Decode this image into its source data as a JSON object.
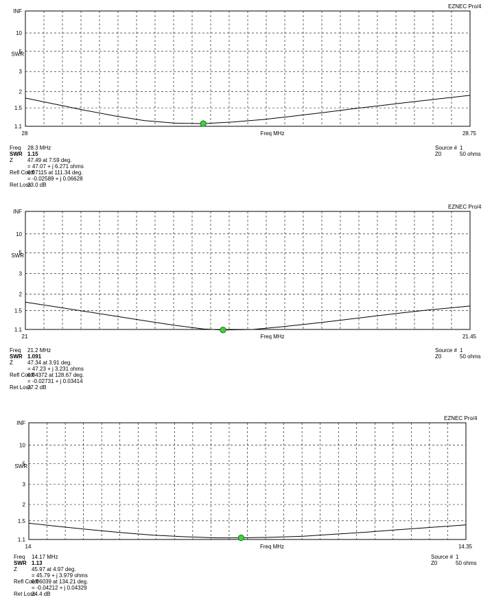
{
  "colors": {
    "curve": "#000000",
    "grid": "#000000",
    "marker_fill": "#3fcf3f",
    "marker_stroke": "#1f7a1f"
  },
  "chart_data": [
    {
      "type": "line",
      "brand": "EZNEC Pro/4",
      "ylabel": "SWR",
      "xlabel": "Freq MHz",
      "xlim": [
        28,
        28.75
      ],
      "x_tick_labels": [
        "28",
        "28.75"
      ],
      "y_tick_labels": [
        "INF",
        "10",
        "5",
        "3",
        "2",
        "1.5",
        "1.1"
      ],
      "yscale": "swr-reflection",
      "grid": true,
      "series": [
        {
          "x": [
            28.0,
            28.05,
            28.1,
            28.15,
            28.2,
            28.25,
            28.3,
            28.35,
            28.4,
            28.45,
            28.5,
            28.55,
            28.6,
            28.65,
            28.7,
            28.75
          ],
          "values": [
            1.78,
            1.6,
            1.44,
            1.31,
            1.21,
            1.16,
            1.15,
            1.18,
            1.23,
            1.3,
            1.38,
            1.47,
            1.56,
            1.66,
            1.76,
            1.87
          ]
        }
      ],
      "marker": {
        "x": 28.3,
        "y": 1.15
      },
      "readout": [
        {
          "label": "Freq",
          "value": "28.3 MHz"
        },
        {
          "label": "SWR",
          "value": "1.15"
        },
        {
          "label": "Z",
          "value": "47.49 at 7.59 deg."
        },
        {
          "label": "",
          "value": "= 47.07 + j 6.271 ohms"
        },
        {
          "label": "Refl Coeff",
          "value": "0.07115 at 111.34 deg."
        },
        {
          "label": "",
          "value": "= -0.02589 + j 0.06628"
        },
        {
          "label": "Ret Loss",
          "value": "23.0 dB"
        }
      ],
      "source": {
        "label": "Source #",
        "value": "1",
        "z0_label": "Z0",
        "z0_value": "50 ohms"
      }
    },
    {
      "type": "line",
      "brand": "EZNEC Pro/4",
      "ylabel": "SWR",
      "xlabel": "Freq MHz",
      "xlim": [
        21,
        21.45
      ],
      "x_tick_labels": [
        "21",
        "21.45"
      ],
      "y_tick_labels": [
        "INF",
        "10",
        "5",
        "3",
        "2",
        "1.5",
        "1.1"
      ],
      "yscale": "swr-reflection",
      "grid": true,
      "series": [
        {
          "x": [
            21.0,
            21.03,
            21.06,
            21.09,
            21.12,
            21.15,
            21.18,
            21.2,
            21.23,
            21.26,
            21.29,
            21.32,
            21.35,
            21.38,
            21.41,
            21.45
          ],
          "values": [
            1.73,
            1.6,
            1.48,
            1.37,
            1.27,
            1.18,
            1.11,
            1.091,
            1.1,
            1.15,
            1.21,
            1.28,
            1.36,
            1.44,
            1.52,
            1.62
          ]
        }
      ],
      "marker": {
        "x": 21.2,
        "y": 1.091
      },
      "readout": [
        {
          "label": "Freq",
          "value": "21.2 MHz"
        },
        {
          "label": "SWR",
          "value": "1.091"
        },
        {
          "label": "Z",
          "value": "47.34 at 3.91 deg."
        },
        {
          "label": "",
          "value": "= 47.23 + j 3.231 ohms"
        },
        {
          "label": "Refl Coeff",
          "value": "0.04372 at 128.67 deg."
        },
        {
          "label": "",
          "value": "= -0.02731 + j 0.03414"
        },
        {
          "label": "Ret Loss",
          "value": "27.2 dB"
        }
      ],
      "source": {
        "label": "Source #",
        "value": "1",
        "z0_label": "Z0",
        "z0_value": "50 ohms"
      }
    },
    {
      "type": "line",
      "brand": "EZNEC Pro/4",
      "ylabel": "SWR",
      "xlabel": "Freq MHz",
      "xlim": [
        14,
        14.35
      ],
      "x_tick_labels": [
        "14",
        "14.35"
      ],
      "y_tick_labels": [
        "INF",
        "10",
        "5",
        "3",
        "2",
        "1.5",
        "1.1"
      ],
      "yscale": "swr-reflection",
      "grid": true,
      "series": [
        {
          "x": [
            14.0,
            14.025,
            14.05,
            14.075,
            14.1,
            14.125,
            14.15,
            14.17,
            14.195,
            14.22,
            14.245,
            14.27,
            14.295,
            14.32,
            14.35
          ],
          "values": [
            1.44,
            1.36,
            1.29,
            1.23,
            1.18,
            1.15,
            1.13,
            1.13,
            1.14,
            1.16,
            1.2,
            1.24,
            1.29,
            1.34,
            1.4
          ]
        }
      ],
      "marker": {
        "x": 14.17,
        "y": 1.13
      },
      "readout": [
        {
          "label": "Freq",
          "value": "14.17 MHz"
        },
        {
          "label": "SWR",
          "value": "1.13"
        },
        {
          "label": "Z",
          "value": "45.97 at 4.97 deg."
        },
        {
          "label": "",
          "value": "= 45.79 + j 3.979 ohms"
        },
        {
          "label": "Refl Coeff",
          "value": "0.06039 at 134.21 deg."
        },
        {
          "label": "",
          "value": "= -0.04212 + j 0.04329"
        },
        {
          "label": "Ret Loss",
          "value": "24.4 dB"
        }
      ],
      "source": {
        "label": "Source #",
        "value": "1",
        "z0_label": "Z0",
        "z0_value": "50 ohms"
      }
    }
  ]
}
